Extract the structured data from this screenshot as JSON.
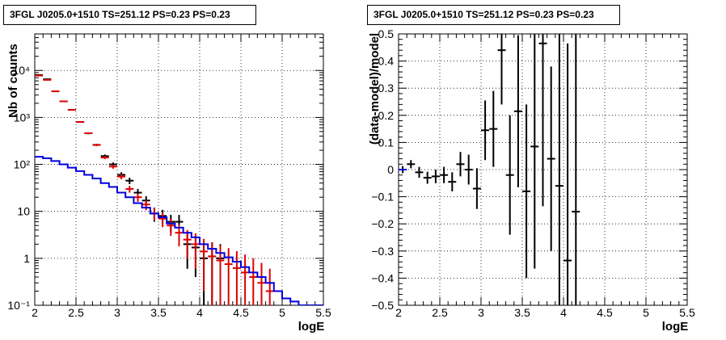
{
  "chart_data": [
    {
      "type": "scatter",
      "title": "3FGL J0205.0+1510 TS=251.12 PS=0.23 PS=0.23",
      "xlabel": "logE",
      "ylabel": "Nb of counts",
      "xlim": [
        2,
        5.5
      ],
      "ylim": [
        0.1,
        60000
      ],
      "yscale": "log",
      "grid": true,
      "x_ticks": [
        "2",
        "2.5",
        "3",
        "3.5",
        "4",
        "4.5",
        "5",
        "5.5"
      ],
      "y_ticks": [
        "10⁻¹",
        "1",
        "10",
        "10²",
        "10³",
        "10⁴"
      ],
      "colors": {
        "data": "#000000",
        "model_total": "#dd0000",
        "model_component": "#0000dd"
      },
      "series": [
        {
          "style": "data",
          "x": [
            2.05,
            2.15,
            2.25,
            2.35,
            2.45,
            2.55,
            2.65,
            2.75,
            2.85,
            2.95,
            3.05,
            3.15,
            3.25,
            3.35,
            3.45,
            3.55,
            3.65,
            3.75,
            3.85,
            3.95,
            4.05,
            4.15,
            4.25
          ],
          "y": [
            8000,
            6500,
            3600,
            2200,
            1450,
            800,
            460,
            260,
            150,
            100,
            60,
            45,
            25,
            17,
            9,
            8,
            6,
            6,
            2,
            1.7,
            1,
            1.1,
            1
          ],
          "yerr_low": [
            90,
            80,
            60,
            47,
            38,
            28,
            21,
            16,
            12,
            10,
            8,
            7,
            5,
            4,
            3,
            2.8,
            2.4,
            2.4,
            1.4,
            1.3,
            0.99,
            1.09,
            0.99
          ],
          "yerr_high": [
            90,
            80,
            60,
            47,
            38,
            28,
            21,
            16,
            12,
            10,
            8,
            7,
            5,
            4,
            3,
            2.8,
            2.4,
            2.4,
            1.4,
            1.3,
            1,
            1.1,
            1
          ]
        },
        {
          "style": "model_total",
          "x": [
            2.05,
            2.15,
            2.25,
            2.35,
            2.45,
            2.55,
            2.65,
            2.75,
            2.85,
            2.95,
            3.05,
            3.15,
            3.25,
            3.35,
            3.45,
            3.55,
            3.65,
            3.75,
            3.85,
            3.95,
            4.05,
            4.15,
            4.25,
            4.35,
            4.45,
            4.55,
            4.65,
            4.75,
            4.85
          ],
          "y": [
            7800,
            6300,
            3600,
            2200,
            1450,
            800,
            460,
            260,
            140,
            90,
            55,
            30,
            20,
            14,
            9,
            7,
            5,
            3.5,
            2.5,
            2,
            1.4,
            1.1,
            0.9,
            0.75,
            0.62,
            0.5,
            0.4,
            0.3,
            0.2
          ],
          "yerr_low": [
            85,
            75,
            55,
            45,
            37,
            27,
            20,
            15,
            11,
            9,
            7,
            5,
            4,
            3.4,
            2.7,
            2.4,
            2,
            1.7,
            1.5,
            1.4,
            1.2,
            1,
            0.88,
            0.74,
            0.61,
            0.49,
            0.39,
            0.29,
            0.19
          ],
          "yerr_high": [
            85,
            75,
            55,
            45,
            37,
            27,
            20,
            15,
            11,
            9,
            7,
            5,
            4,
            3.4,
            2.7,
            2.4,
            2,
            1.7,
            1.5,
            1.4,
            1.2,
            1.1,
            0.95,
            0.9,
            0.8,
            0.7,
            0.6,
            0.5,
            0.4
          ]
        },
        {
          "style": "model_component",
          "step": true,
          "x": [
            2.0,
            2.1,
            2.2,
            2.3,
            2.4,
            2.5,
            2.6,
            2.7,
            2.8,
            2.9,
            3.0,
            3.1,
            3.2,
            3.3,
            3.4,
            3.5,
            3.6,
            3.7,
            3.8,
            3.9,
            4.0,
            4.1,
            4.2,
            4.3,
            4.4,
            4.5,
            4.6,
            4.7,
            4.8,
            4.9,
            5.0,
            5.1,
            5.2,
            5.3,
            5.4
          ],
          "y": [
            145,
            135,
            118,
            100,
            85,
            72,
            60,
            50,
            40,
            33,
            25,
            20,
            15,
            12,
            9,
            7.5,
            5.5,
            4.5,
            3.5,
            2.8,
            2.0,
            1.6,
            1.3,
            1.05,
            0.85,
            0.65,
            0.5,
            0.4,
            0.3,
            0.2,
            0.14,
            0.12,
            0.1,
            0.1,
            0.1
          ]
        }
      ]
    },
    {
      "type": "scatter",
      "title": "3FGL J0205.0+1510 TS=251.12 PS=0.23 PS=0.23",
      "xlabel": "logE",
      "ylabel": "(data-model)/model",
      "xlim": [
        2,
        5.5
      ],
      "ylim": [
        -0.5,
        0.5
      ],
      "grid": true,
      "x_ticks": [
        "2",
        "2.5",
        "3",
        "3.5",
        "4",
        "4.5",
        "5",
        "5.5"
      ],
      "y_ticks": [
        "−0.5",
        "−0.4",
        "−0.3",
        "−0.2",
        "−0.1",
        "0",
        "0.1",
        "0.2",
        "0.3",
        "0.4",
        "0.5"
      ],
      "colors": {
        "data": "#000000",
        "model_component": "#0000dd"
      },
      "series": [
        {
          "style": "data",
          "x": [
            2.05,
            2.15,
            2.25,
            2.35,
            2.45,
            2.55,
            2.65,
            2.75,
            2.85,
            2.95,
            3.05,
            3.15,
            3.25,
            3.35,
            3.45,
            3.55,
            3.65,
            3.75,
            3.85,
            3.95,
            4.05,
            4.15
          ],
          "y": [
            0.0,
            0.02,
            -0.01,
            -0.03,
            -0.025,
            -0.02,
            -0.045,
            0.02,
            0.0,
            -0.07,
            0.145,
            0.15,
            0.44,
            -0.02,
            0.215,
            -0.08,
            0.085,
            0.465,
            0.04,
            -0.06,
            -0.335,
            -0.155
          ],
          "yerr": [
            0.013,
            0.015,
            0.02,
            0.022,
            0.025,
            0.03,
            0.035,
            0.045,
            0.055,
            0.075,
            0.11,
            0.14,
            0.2,
            0.22,
            0.28,
            0.32,
            0.45,
            0.6,
            0.34,
            0.6,
            0.8,
            0.8
          ]
        },
        {
          "style": "model_component",
          "x": [
            2.0,
            2.1
          ],
          "y": [
            0.0,
            0.0
          ]
        }
      ]
    }
  ]
}
